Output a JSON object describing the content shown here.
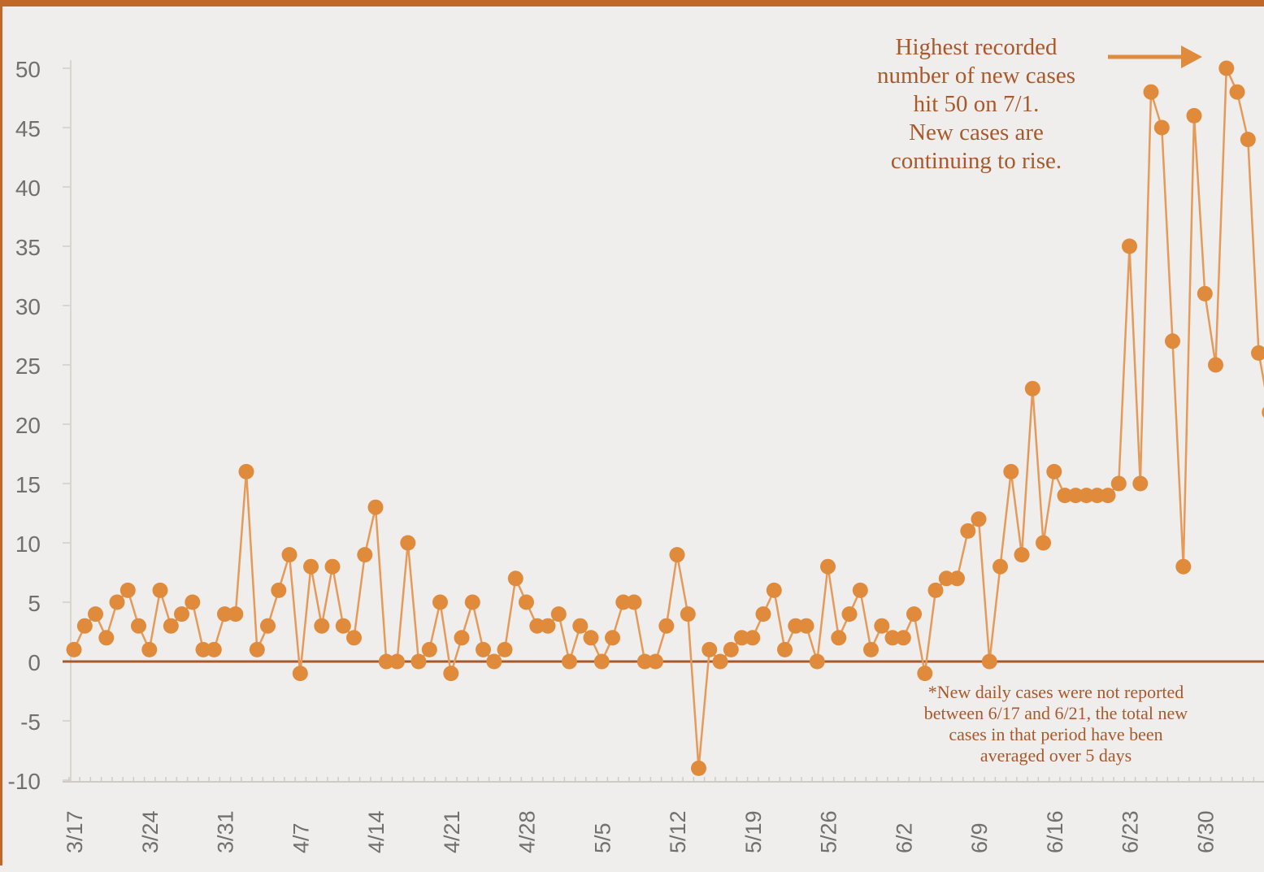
{
  "chart_data": {
    "type": "line",
    "title": "",
    "xlabel": "",
    "ylabel": "",
    "ylim": [
      -10,
      50
    ],
    "yticks": [
      50,
      45,
      40,
      35,
      30,
      25,
      20,
      15,
      10,
      5,
      0,
      -5,
      -10
    ],
    "xtick_labels": [
      "3/17",
      "3/24",
      "3/31",
      "4/7",
      "4/14",
      "4/21",
      "4/28",
      "5/5",
      "5/12",
      "5/19",
      "5/26",
      "6/2",
      "6/9",
      "6/16",
      "6/23",
      "6/30"
    ],
    "grid": false,
    "series": [
      {
        "values": [
          1,
          3,
          4,
          2,
          5,
          6,
          3,
          1,
          6,
          3,
          4,
          5,
          1,
          1,
          4,
          4,
          16,
          1,
          3,
          6,
          9,
          -1,
          8,
          3,
          8,
          3,
          2,
          9,
          13,
          0,
          0,
          10,
          0,
          1,
          5,
          -1,
          2,
          5,
          1,
          0,
          1,
          7,
          5,
          3,
          3,
          4,
          0,
          3,
          2,
          0,
          2,
          5,
          5,
          0,
          0,
          3,
          9,
          4,
          -9,
          1,
          0,
          1,
          2,
          2,
          4,
          6,
          1,
          3,
          3,
          0,
          8,
          2,
          4,
          6,
          1,
          3,
          2,
          2,
          4,
          -1,
          6,
          7,
          7,
          11,
          12,
          0,
          8,
          16,
          9,
          23,
          10,
          16,
          14,
          14,
          14,
          14,
          14,
          15,
          35,
          15,
          48,
          45,
          27,
          8,
          46,
          31,
          25,
          50,
          48,
          44,
          26,
          21
        ]
      }
    ],
    "annotations": {
      "peak_lines": [
        "Highest recorded",
        "number of new cases",
        "hit 50 on 7/1.",
        "New cases are",
        "continuing to rise."
      ],
      "footnote_lines": [
        "*New daily cases were not reported",
        "between 6/17 and 6/21, the total new",
        "cases in that period have been",
        "averaged over 5 days"
      ]
    },
    "colors": {
      "line": "#e59a5a",
      "marker": "#e08a3c",
      "zero_line": "#a9582a",
      "annotation_text": "#a9582a",
      "frame": "#c0682c",
      "background": "#efeeec"
    }
  }
}
